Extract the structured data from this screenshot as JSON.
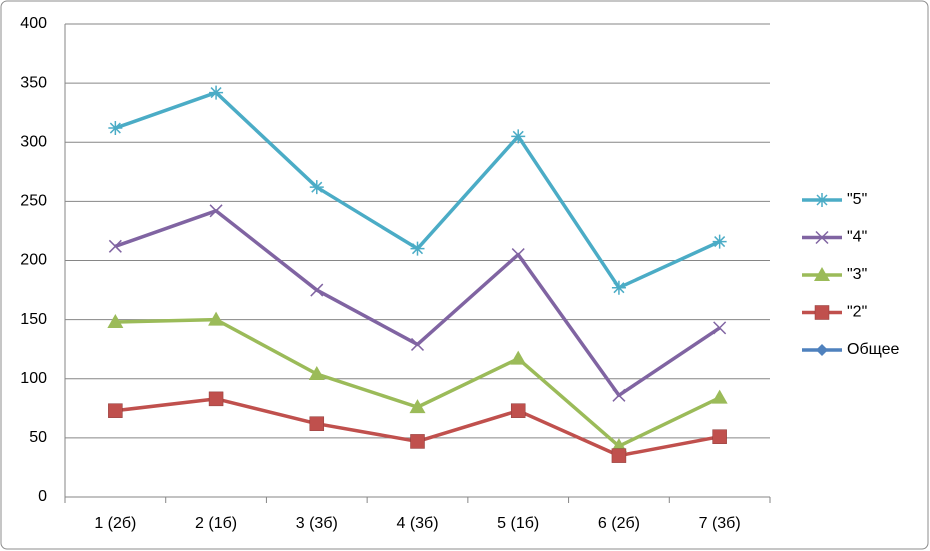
{
  "chart_data": {
    "type": "line",
    "categories": [
      "1 (2б)",
      "2 (1б)",
      "3 (3б)",
      "4 (3б)",
      "5 (1б)",
      "6 (2б)",
      "7 (3б)"
    ],
    "series": [
      {
        "name": "\"5\"",
        "color": "#4bacc6",
        "marker": "star",
        "values": [
          312,
          342,
          262,
          210,
          305,
          177,
          216
        ]
      },
      {
        "name": "\"4\"",
        "color": "#8064a2",
        "marker": "x",
        "values": [
          212,
          242,
          175,
          129,
          205,
          86,
          143
        ]
      },
      {
        "name": "\"3\"",
        "color": "#9bbb59",
        "marker": "triangle",
        "values": [
          148,
          150,
          104,
          76,
          117,
          43,
          84
        ]
      },
      {
        "name": "\"2\"",
        "color": "#c0504d",
        "marker": "square",
        "values": [
          73,
          83,
          62,
          47,
          73,
          35,
          51
        ]
      },
      {
        "name": "Общее",
        "color": "#4f81bd",
        "marker": "diamond",
        "values": [
          null,
          null,
          null,
          null,
          null,
          null,
          null
        ]
      }
    ],
    "ylim": [
      0,
      400
    ],
    "yticks": [
      0,
      50,
      100,
      150,
      200,
      250,
      300,
      350,
      400
    ],
    "grid": true,
    "legend": "right"
  }
}
